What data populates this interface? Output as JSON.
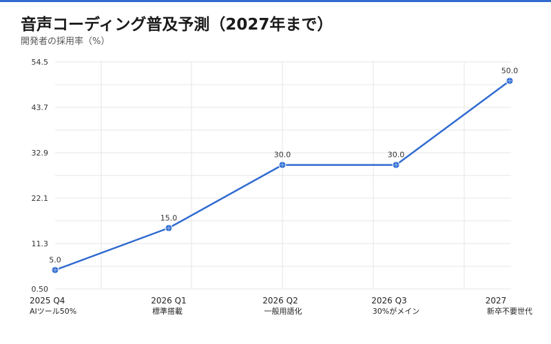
{
  "accent": "#2f6ad0",
  "header": {
    "title": "音声コーディング普及予測（2027年まで）",
    "subtitle": "開発者の採用率（%）"
  },
  "chart_data": {
    "type": "line",
    "title": "音声コーディング普及予測（2027年まで）",
    "subtitle": "開発者の採用率（%）",
    "xlabel": "",
    "ylabel": "",
    "categories": [
      "2025 Q4",
      "2026 Q1",
      "2026 Q2",
      "2026 Q3",
      "2027"
    ],
    "category_notes": [
      "AIツール50%",
      "標準搭載",
      "一般用語化",
      "30%がメイン",
      "新卒不要世代"
    ],
    "series": [
      {
        "values": [
          5.0,
          15.0,
          30.0,
          30.0,
          50.0
        ],
        "color": "#2f6ad0"
      }
    ],
    "data_labels": [
      "5.0",
      "15.0",
      "30.0",
      "30.0",
      "50.0"
    ],
    "ylim": [
      0.5,
      54.5
    ],
    "yticks": [
      "0.50",
      "11.3",
      "22.1",
      "32.9",
      "43.7",
      "54.5"
    ],
    "grid": true,
    "legend": "none"
  }
}
